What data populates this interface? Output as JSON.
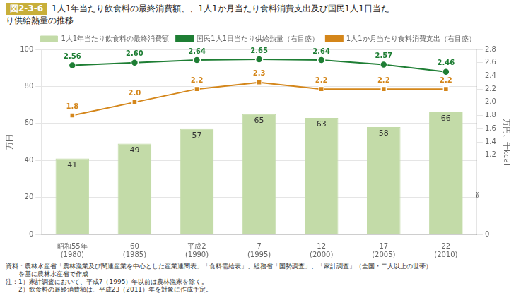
{
  "chart_data": {
    "type": "bar",
    "title": "図2-3-6",
    "subtitle": [
      "1人1年当たり飲食料の最終消費額、、1人1か月当たり食料消費支出及び国民1人1日当た",
      "り供給熱量の推移"
    ],
    "categories": [
      "昭和55年\n(1980)",
      "60\n(1985)",
      "平成2\n(1990)",
      "7\n(1995)",
      "12\n(2000)",
      "17\n(2005)",
      "22\n(2010)"
    ],
    "series": [
      {
        "name": "1人1年当たり飲食料の最終消費額",
        "type": "bar",
        "color": "#c3dba8",
        "values": [
          41,
          49,
          57,
          65,
          63,
          58,
          66
        ]
      },
      {
        "name": "国民1人1日当たり供給熱量（右目盛）",
        "type": "line",
        "color": "#1e7e34",
        "marker": "circle",
        "axis": "y2",
        "values": [
          2.56,
          2.6,
          2.64,
          2.65,
          2.64,
          2.57,
          2.46
        ],
        "value_labels": [
          "2.56",
          "2.60",
          "2.64",
          "2.65",
          "2.64",
          "2.57",
          "2.46"
        ]
      },
      {
        "name": "1人1か月当たり食料消費支出（右目盛）",
        "type": "line",
        "color": "#d4861a",
        "marker": "square",
        "axis": "y2",
        "values": [
          1.8,
          2.0,
          2.2,
          2.3,
          2.2,
          2.2,
          2.2
        ],
        "value_labels": [
          "1.8",
          "2.0",
          "2.2",
          "2.3",
          "2.2",
          "2.2",
          "2.2"
        ]
      }
    ],
    "ylabel": "万円",
    "y2label": "万円、千kcal",
    "ylim": [
      0,
      100
    ],
    "yticks": [
      0,
      20,
      40,
      60,
      80,
      100
    ],
    "y2lim": [
      0,
      2.8
    ],
    "y2ticks": [
      0,
      1.2,
      1.4,
      1.6,
      1.8,
      {
        "value": 2.0,
        "label": "2.0"
      },
      2.2,
      2.4,
      2.6,
      2.8
    ],
    "grid": true,
    "data_labels": true,
    "legend": "top",
    "annotations": [
      "≈"
    ],
    "source": [
      "資料：農林水産省「農林漁業及び関連産業を中心とした産業連関表」「食料需給表」、総務省「国勢調査」、「家計調査」（全国・二人以上の世帯）",
      "　　を基に農林水産省で作成"
    ],
    "notes": [
      "注：1）家計調査において、平成7（1995）年以前は農林漁家を除く。",
      "　　2）飲食料の最終消費額は、平成23（2011）年を対象に作成予定。"
    ]
  }
}
